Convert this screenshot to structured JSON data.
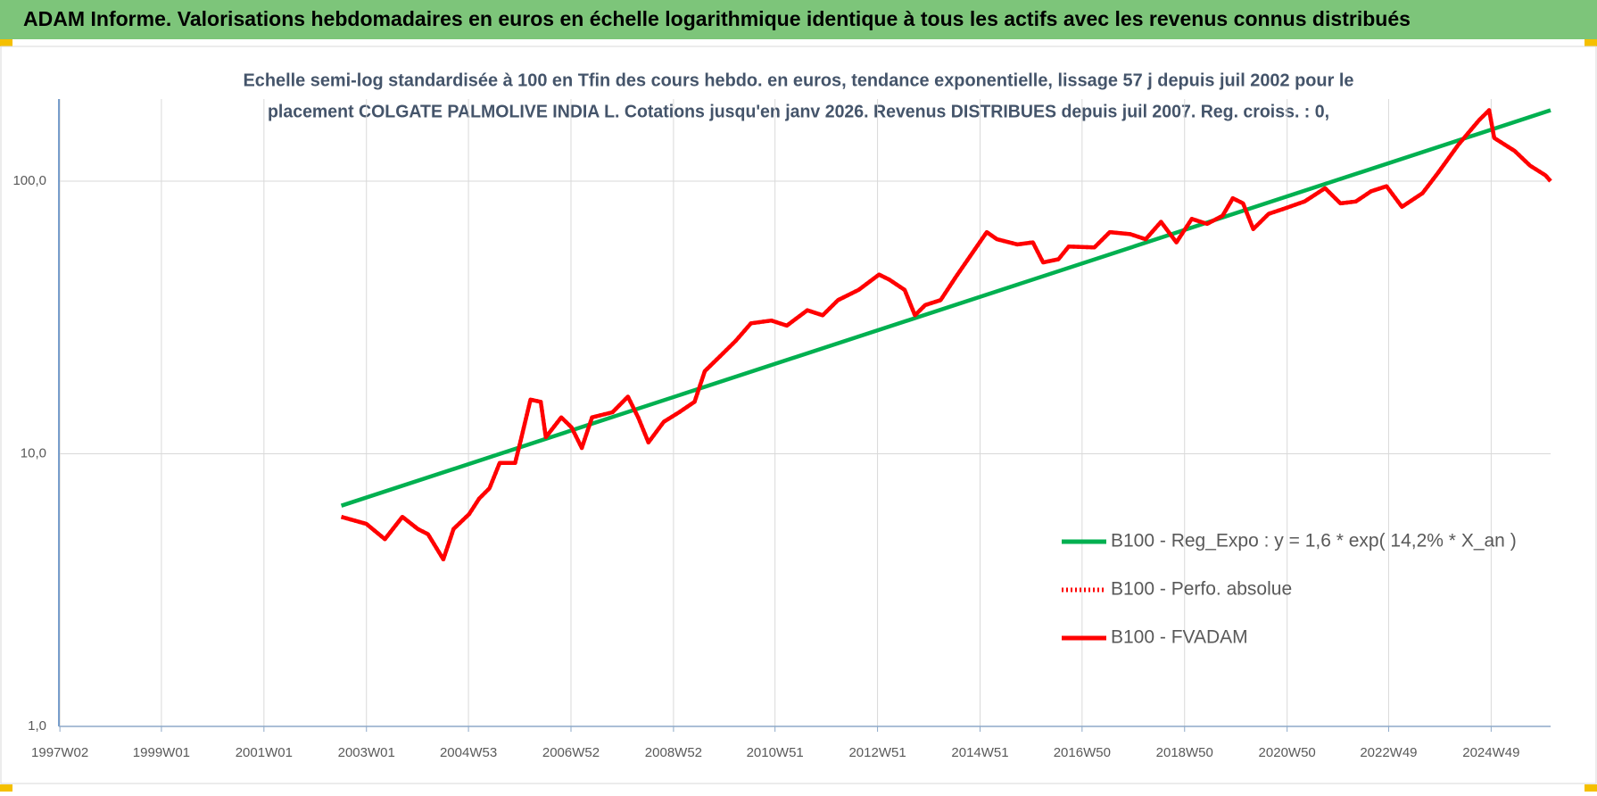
{
  "header": {
    "title": "ADAM Informe. Valorisations hebdomadaires en euros en échelle logarithmique identique à tous les actifs avec les revenus connus distribués"
  },
  "chart_data": {
    "type": "line",
    "subtitle": [
      "Echelle semi-log standardisée à 100 en Tfin des cours hebdo. en euros, tendance exponentielle, lissage 57 j depuis juil 2002 pour le",
      "placement COLGATE PALMOLIVE INDIA L. Cotations jusqu'en janv 2026. Revenus DISTRIBUES depuis juil 2007. Reg. croiss. : 0,"
    ],
    "log_scale": true,
    "grid": true,
    "legend": "right",
    "ylim": [
      1,
      200
    ],
    "yticks": [
      {
        "value": 1,
        "label": "1,0"
      },
      {
        "value": 10,
        "label": "10,0"
      },
      {
        "value": 100,
        "label": "100,0"
      }
    ],
    "xlim": [
      1997.0,
      2026.1
    ],
    "xticks": [
      {
        "value": 1997.02,
        "label": "1997W02"
      },
      {
        "value": 1999.0,
        "label": "1999W01"
      },
      {
        "value": 2001.0,
        "label": "2001W01"
      },
      {
        "value": 2003.0,
        "label": "2003W01"
      },
      {
        "value": 2004.99,
        "label": "2004W53"
      },
      {
        "value": 2006.99,
        "label": "2006W52"
      },
      {
        "value": 2008.99,
        "label": "2008W52"
      },
      {
        "value": 2010.97,
        "label": "2010W51"
      },
      {
        "value": 2012.97,
        "label": "2012W51"
      },
      {
        "value": 2014.97,
        "label": "2014W51"
      },
      {
        "value": 2016.96,
        "label": "2016W50"
      },
      {
        "value": 2018.96,
        "label": "2018W50"
      },
      {
        "value": 2020.96,
        "label": "2020W50"
      },
      {
        "value": 2022.94,
        "label": "2022W49"
      },
      {
        "value": 2024.94,
        "label": "2024W49"
      }
    ],
    "series": [
      {
        "name": "B100 - Reg_Expo : y = 1,6 * exp( 14,2% *  X_an )",
        "color": "#00b050",
        "dash": "solid",
        "x": [
          2002.51,
          2026.1
        ],
        "values": [
          6.45,
          182
        ]
      },
      {
        "name": "B100 - Perfo. absolue",
        "color": "#ff0000",
        "dash": "dotted",
        "x": [
          2002.51,
          2003.0,
          2003.36,
          2003.7,
          2004.0,
          2004.2,
          2004.5,
          2004.7,
          2005.0,
          2005.2,
          2005.4,
          2005.6,
          2005.9,
          2006.0,
          2006.2,
          2006.4,
          2006.5,
          2006.8,
          2007.0,
          2007.2,
          2007.4,
          2007.8,
          2008.1,
          2008.3,
          2008.5,
          2008.8,
          2009.1,
          2009.4,
          2009.6,
          2009.9,
          2010.2,
          2010.5,
          2010.9,
          2011.2,
          2011.6,
          2011.9,
          2012.2,
          2012.6,
          2013.0,
          2013.2,
          2013.5,
          2013.7,
          2013.9,
          2014.2,
          2014.5,
          2014.8,
          2015.1,
          2015.3,
          2015.7,
          2016.0,
          2016.2,
          2016.5,
          2016.7,
          2017.2,
          2017.5,
          2017.9,
          2018.2,
          2018.5,
          2018.8,
          2019.1,
          2019.4,
          2019.7,
          2019.9,
          2020.1,
          2020.3,
          2020.6,
          2020.9,
          2021.3,
          2021.7,
          2022.0,
          2022.3,
          2022.6,
          2022.9,
          2023.2,
          2023.6,
          2023.9,
          2024.3,
          2024.7,
          2024.9,
          2025.0,
          2025.4,
          2025.7,
          2026.0,
          2026.1
        ],
        "values": [
          5.87,
          5.53,
          4.86,
          5.87,
          5.3,
          5.07,
          4.1,
          5.3,
          6.0,
          6.85,
          7.47,
          9.26,
          9.26,
          11.0,
          15.8,
          15.5,
          11.5,
          13.6,
          12.5,
          10.5,
          13.6,
          14.2,
          16.2,
          13.6,
          11.0,
          13.1,
          14.2,
          15.5,
          20.1,
          22.8,
          25.9,
          30.1,
          30.8,
          29.5,
          33.6,
          32.2,
          36.6,
          39.9,
          45.4,
          43.5,
          39.9,
          32.2,
          35.1,
          36.6,
          44.6,
          53.8,
          65.0,
          61.2,
          58.6,
          59.6,
          50.3,
          51.7,
          57.6,
          57.1,
          65.0,
          63.9,
          61.2,
          70.9,
          59.6,
          72.7,
          69.7,
          74.6,
          86.5,
          82.9,
          66.7,
          75.9,
          79.2,
          84.2,
          94.2,
          82.9,
          84.2,
          91.8,
          95.8,
          80.5,
          90.3,
          107,
          136,
          167,
          182,
          144,
          129,
          114,
          105,
          100
        ]
      },
      {
        "name": "B100 - FVADAM",
        "color": "#ff0000",
        "dash": "solid",
        "x": [
          2002.51,
          2003.0,
          2003.36,
          2003.7,
          2004.0,
          2004.2,
          2004.5,
          2004.7,
          2005.0,
          2005.2,
          2005.4,
          2005.6,
          2005.9,
          2006.0,
          2006.2,
          2006.4,
          2006.5,
          2006.8,
          2007.0,
          2007.2,
          2007.4,
          2007.8,
          2008.1,
          2008.3,
          2008.5,
          2008.8,
          2009.1,
          2009.4,
          2009.6,
          2009.9,
          2010.2,
          2010.5,
          2010.9,
          2011.2,
          2011.6,
          2011.9,
          2012.2,
          2012.6,
          2013.0,
          2013.2,
          2013.5,
          2013.7,
          2013.9,
          2014.2,
          2014.5,
          2014.8,
          2015.1,
          2015.3,
          2015.7,
          2016.0,
          2016.2,
          2016.5,
          2016.7,
          2017.2,
          2017.5,
          2017.9,
          2018.2,
          2018.5,
          2018.8,
          2019.1,
          2019.4,
          2019.7,
          2019.9,
          2020.1,
          2020.3,
          2020.6,
          2020.9,
          2021.3,
          2021.7,
          2022.0,
          2022.3,
          2022.6,
          2022.9,
          2023.2,
          2023.6,
          2023.9,
          2024.3,
          2024.7,
          2024.9,
          2025.0,
          2025.4,
          2025.7,
          2026.0,
          2026.1
        ],
        "values": [
          5.87,
          5.53,
          4.86,
          5.87,
          5.3,
          5.07,
          4.1,
          5.3,
          6.0,
          6.85,
          7.47,
          9.26,
          9.26,
          11.0,
          15.8,
          15.5,
          11.5,
          13.6,
          12.5,
          10.5,
          13.6,
          14.2,
          16.2,
          13.6,
          11.0,
          13.1,
          14.2,
          15.5,
          20.1,
          22.8,
          25.9,
          30.1,
          30.8,
          29.5,
          33.6,
          32.2,
          36.6,
          39.9,
          45.4,
          43.5,
          39.9,
          32.2,
          35.1,
          36.6,
          44.6,
          53.8,
          65.0,
          61.2,
          58.6,
          59.6,
          50.3,
          51.7,
          57.6,
          57.1,
          65.0,
          63.9,
          61.2,
          70.9,
          59.6,
          72.7,
          69.7,
          74.6,
          86.5,
          82.9,
          66.7,
          75.9,
          79.2,
          84.2,
          94.2,
          82.9,
          84.2,
          91.8,
          95.8,
          80.5,
          90.3,
          107,
          136,
          167,
          182,
          144,
          129,
          114,
          105,
          100
        ]
      }
    ]
  }
}
